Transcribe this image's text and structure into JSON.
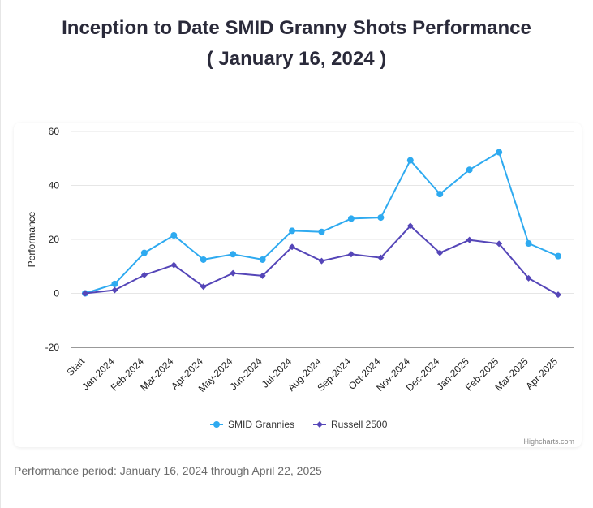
{
  "header": {
    "title_line1": "Inception to Date SMID Granny Shots Performance",
    "title_line2": "( January 16, 2024 )"
  },
  "footer": {
    "text": "Performance period: January 16, 2024 through April 22, 2025"
  },
  "credits": "Highcharts.com",
  "colors": {
    "smid": "#2eaaf0",
    "russell": "#5546b8",
    "grid": "#e6e6e6",
    "axis": "#333333"
  },
  "chart_data": {
    "type": "line",
    "title": "Inception to Date SMID Granny Shots Performance ( January 16, 2024 )",
    "xlabel": "",
    "ylabel": "Performance",
    "ylim": [
      -20,
      60
    ],
    "yticks": [
      60,
      40,
      20,
      0,
      -20
    ],
    "categories": [
      "Start",
      "Jan-2024",
      "Feb-2024",
      "Mar-2024",
      "Apr-2024",
      "May-2024",
      "Jun-2024",
      "Jul-2024",
      "Aug-2024",
      "Sep-2024",
      "Oct-2024",
      "Nov-2024",
      "Dec-2024",
      "Jan-2025",
      "Feb-2025",
      "Mar-2025",
      "Apr-2025"
    ],
    "series": [
      {
        "name": "SMID Grannies",
        "marker": "circle",
        "values": [
          0,
          3.5,
          15,
          21.5,
          12.5,
          14.5,
          12.5,
          23.2,
          22.8,
          27.7,
          28.1,
          49.3,
          36.8,
          45.8,
          52.3,
          18.5,
          13.8
        ]
      },
      {
        "name": "Russell 2500",
        "marker": "diamond",
        "values": [
          0,
          1.2,
          6.8,
          10.5,
          2.5,
          7.5,
          6.5,
          17.2,
          12,
          14.5,
          13.2,
          25,
          15,
          19.8,
          18.4,
          5.6,
          -0.5
        ]
      }
    ],
    "legend_position": "bottom-center",
    "grid": true
  }
}
